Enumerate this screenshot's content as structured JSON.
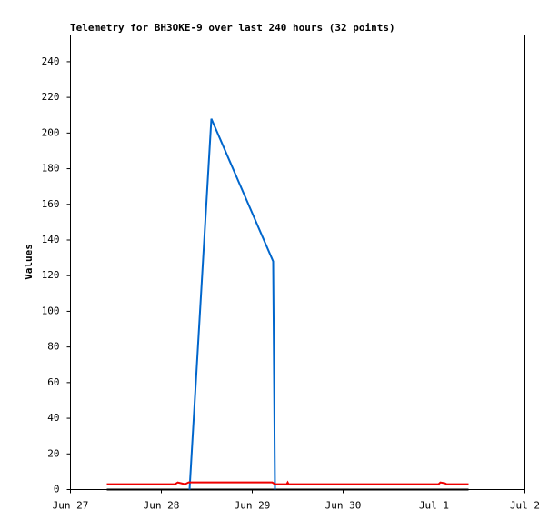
{
  "chart_data": {
    "type": "line",
    "title": "Telemetry for BH3OKE-9 over last 240 hours (32 points)",
    "y_label": "Values",
    "xlim": [
      0,
      5
    ],
    "xticks": [
      {
        "value": 0,
        "label": "Jun 27"
      },
      {
        "value": 1,
        "label": "Jun 28"
      },
      {
        "value": 2,
        "label": "Jun 29"
      },
      {
        "value": 3,
        "label": "Jun 30"
      },
      {
        "value": 4,
        "label": "Jul 1"
      },
      {
        "value": 5,
        "label": "Jul 2"
      }
    ],
    "ylim": [
      0,
      255
    ],
    "yticks": [
      0,
      20,
      40,
      60,
      80,
      100,
      120,
      140,
      160,
      180,
      200,
      220,
      240
    ],
    "series": [
      {
        "color": "#000000",
        "x": [
          0.4,
          4.38
        ],
        "values": [
          0,
          0
        ]
      },
      {
        "color": "#0066cc",
        "x": [
          1.31,
          1.55,
          2.23,
          2.24,
          2.25
        ],
        "values": [
          0,
          208,
          128,
          64,
          0
        ]
      },
      {
        "color": "#ee0000",
        "x": [
          0.4,
          1.15,
          1.18,
          1.22,
          1.26,
          1.3,
          2.22,
          2.25,
          2.38,
          2.39,
          2.4,
          4.05,
          4.07,
          4.12,
          4.14,
          4.38
        ],
        "values": [
          3,
          3,
          4,
          3.5,
          3,
          4,
          4,
          3,
          3,
          4,
          3,
          3,
          4,
          3.5,
          3,
          3
        ]
      }
    ]
  }
}
